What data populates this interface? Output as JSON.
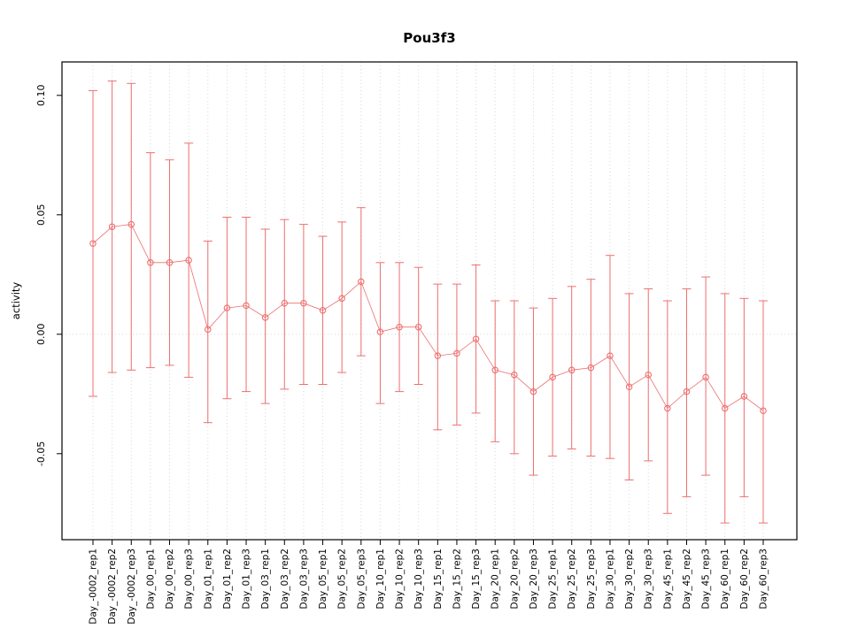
{
  "chart_data": {
    "type": "line",
    "title": "Pou3f3",
    "xlabel": "",
    "ylabel": "activity",
    "ylim": [
      -0.086,
      0.114
    ],
    "yticks": [
      -0.05,
      0.0,
      0.05,
      0.1
    ],
    "grid": "vertical-dotted",
    "zero_line": true,
    "legend_position": "none",
    "marker": "open-circle",
    "colors": {
      "series": "#ee6f6f",
      "grid": "#d8d8d8",
      "axis": "#000000"
    },
    "categories": [
      "Day_-0002_rep1",
      "Day_-0002_rep2",
      "Day_-0002_rep3",
      "Day_00_rep1",
      "Day_00_rep2",
      "Day_00_rep3",
      "Day_01_rep1",
      "Day_01_rep2",
      "Day_01_rep3",
      "Day_03_rep1",
      "Day_03_rep2",
      "Day_03_rep3",
      "Day_05_rep1",
      "Day_05_rep2",
      "Day_05_rep3",
      "Day_10_rep1",
      "Day_10_rep2",
      "Day_10_rep3",
      "Day_15_rep1",
      "Day_15_rep2",
      "Day_15_rep3",
      "Day_20_rep1",
      "Day_20_rep2",
      "Day_20_rep3",
      "Day_25_rep1",
      "Day_25_rep2",
      "Day_25_rep3",
      "Day_30_rep1",
      "Day_30_rep2",
      "Day_30_rep3",
      "Day_45_rep1",
      "Day_45_rep2",
      "Day_45_rep3",
      "Day_60_rep1",
      "Day_60_rep2",
      "Day_60_rep3"
    ],
    "series": [
      {
        "name": "activity",
        "values": [
          0.038,
          0.045,
          0.046,
          0.03,
          0.03,
          0.031,
          0.002,
          0.011,
          0.012,
          0.007,
          0.013,
          0.013,
          0.01,
          0.015,
          0.022,
          0.001,
          0.003,
          0.003,
          -0.009,
          -0.008,
          -0.002,
          -0.015,
          -0.017,
          -0.024,
          -0.018,
          -0.015,
          -0.014,
          -0.009,
          -0.022,
          -0.017,
          -0.031,
          -0.024,
          -0.018,
          -0.031,
          -0.026,
          -0.032
        ],
        "upper": [
          0.102,
          0.106,
          0.105,
          0.076,
          0.073,
          0.08,
          0.039,
          0.049,
          0.049,
          0.044,
          0.048,
          0.046,
          0.041,
          0.047,
          0.053,
          0.03,
          0.03,
          0.028,
          0.021,
          0.021,
          0.029,
          0.014,
          0.014,
          0.011,
          0.015,
          0.02,
          0.023,
          0.033,
          0.017,
          0.019,
          0.014,
          0.019,
          0.024,
          0.017,
          0.015,
          0.014
        ],
        "lower": [
          -0.026,
          -0.016,
          -0.015,
          -0.014,
          -0.013,
          -0.018,
          -0.037,
          -0.027,
          -0.024,
          -0.029,
          -0.023,
          -0.021,
          -0.021,
          -0.016,
          -0.009,
          -0.029,
          -0.024,
          -0.021,
          -0.04,
          -0.038,
          -0.033,
          -0.045,
          -0.05,
          -0.059,
          -0.051,
          -0.048,
          -0.051,
          -0.052,
          -0.061,
          -0.053,
          -0.075,
          -0.068,
          -0.059,
          -0.079,
          -0.068,
          -0.079
        ]
      }
    ]
  }
}
